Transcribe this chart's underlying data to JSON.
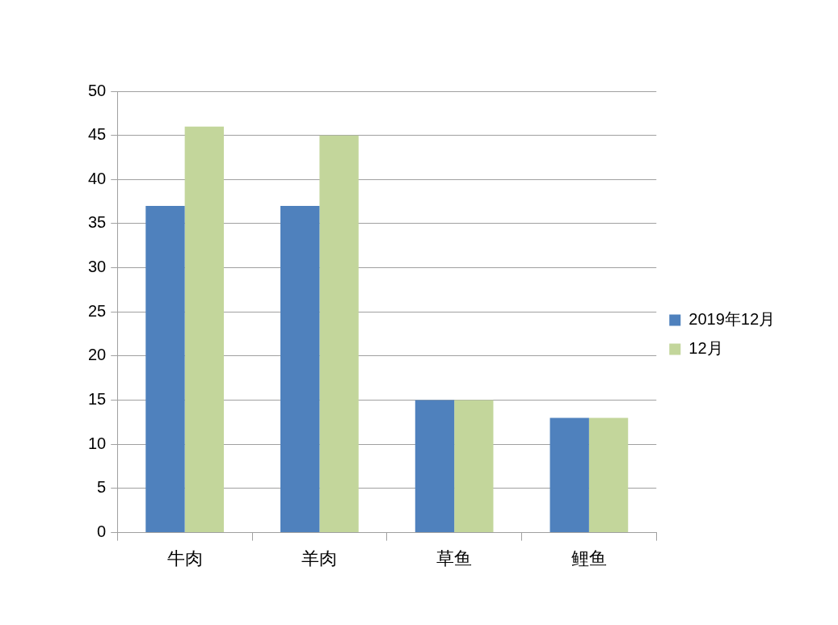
{
  "chart_data": {
    "type": "bar",
    "categories": [
      "牛肉",
      "羊肉",
      "草鱼",
      "鲤鱼"
    ],
    "series": [
      {
        "name": "2019年12月",
        "color": "#4f81bd",
        "values": [
          37,
          37,
          15,
          13
        ]
      },
      {
        "name": "12月",
        "color": "#c3d69b",
        "values": [
          46,
          45,
          15,
          13
        ]
      }
    ],
    "ylim": [
      0,
      50
    ],
    "yticks": [
      0,
      5,
      10,
      15,
      20,
      25,
      30,
      35,
      40,
      45,
      50
    ],
    "grid": "y",
    "legend": "right"
  }
}
